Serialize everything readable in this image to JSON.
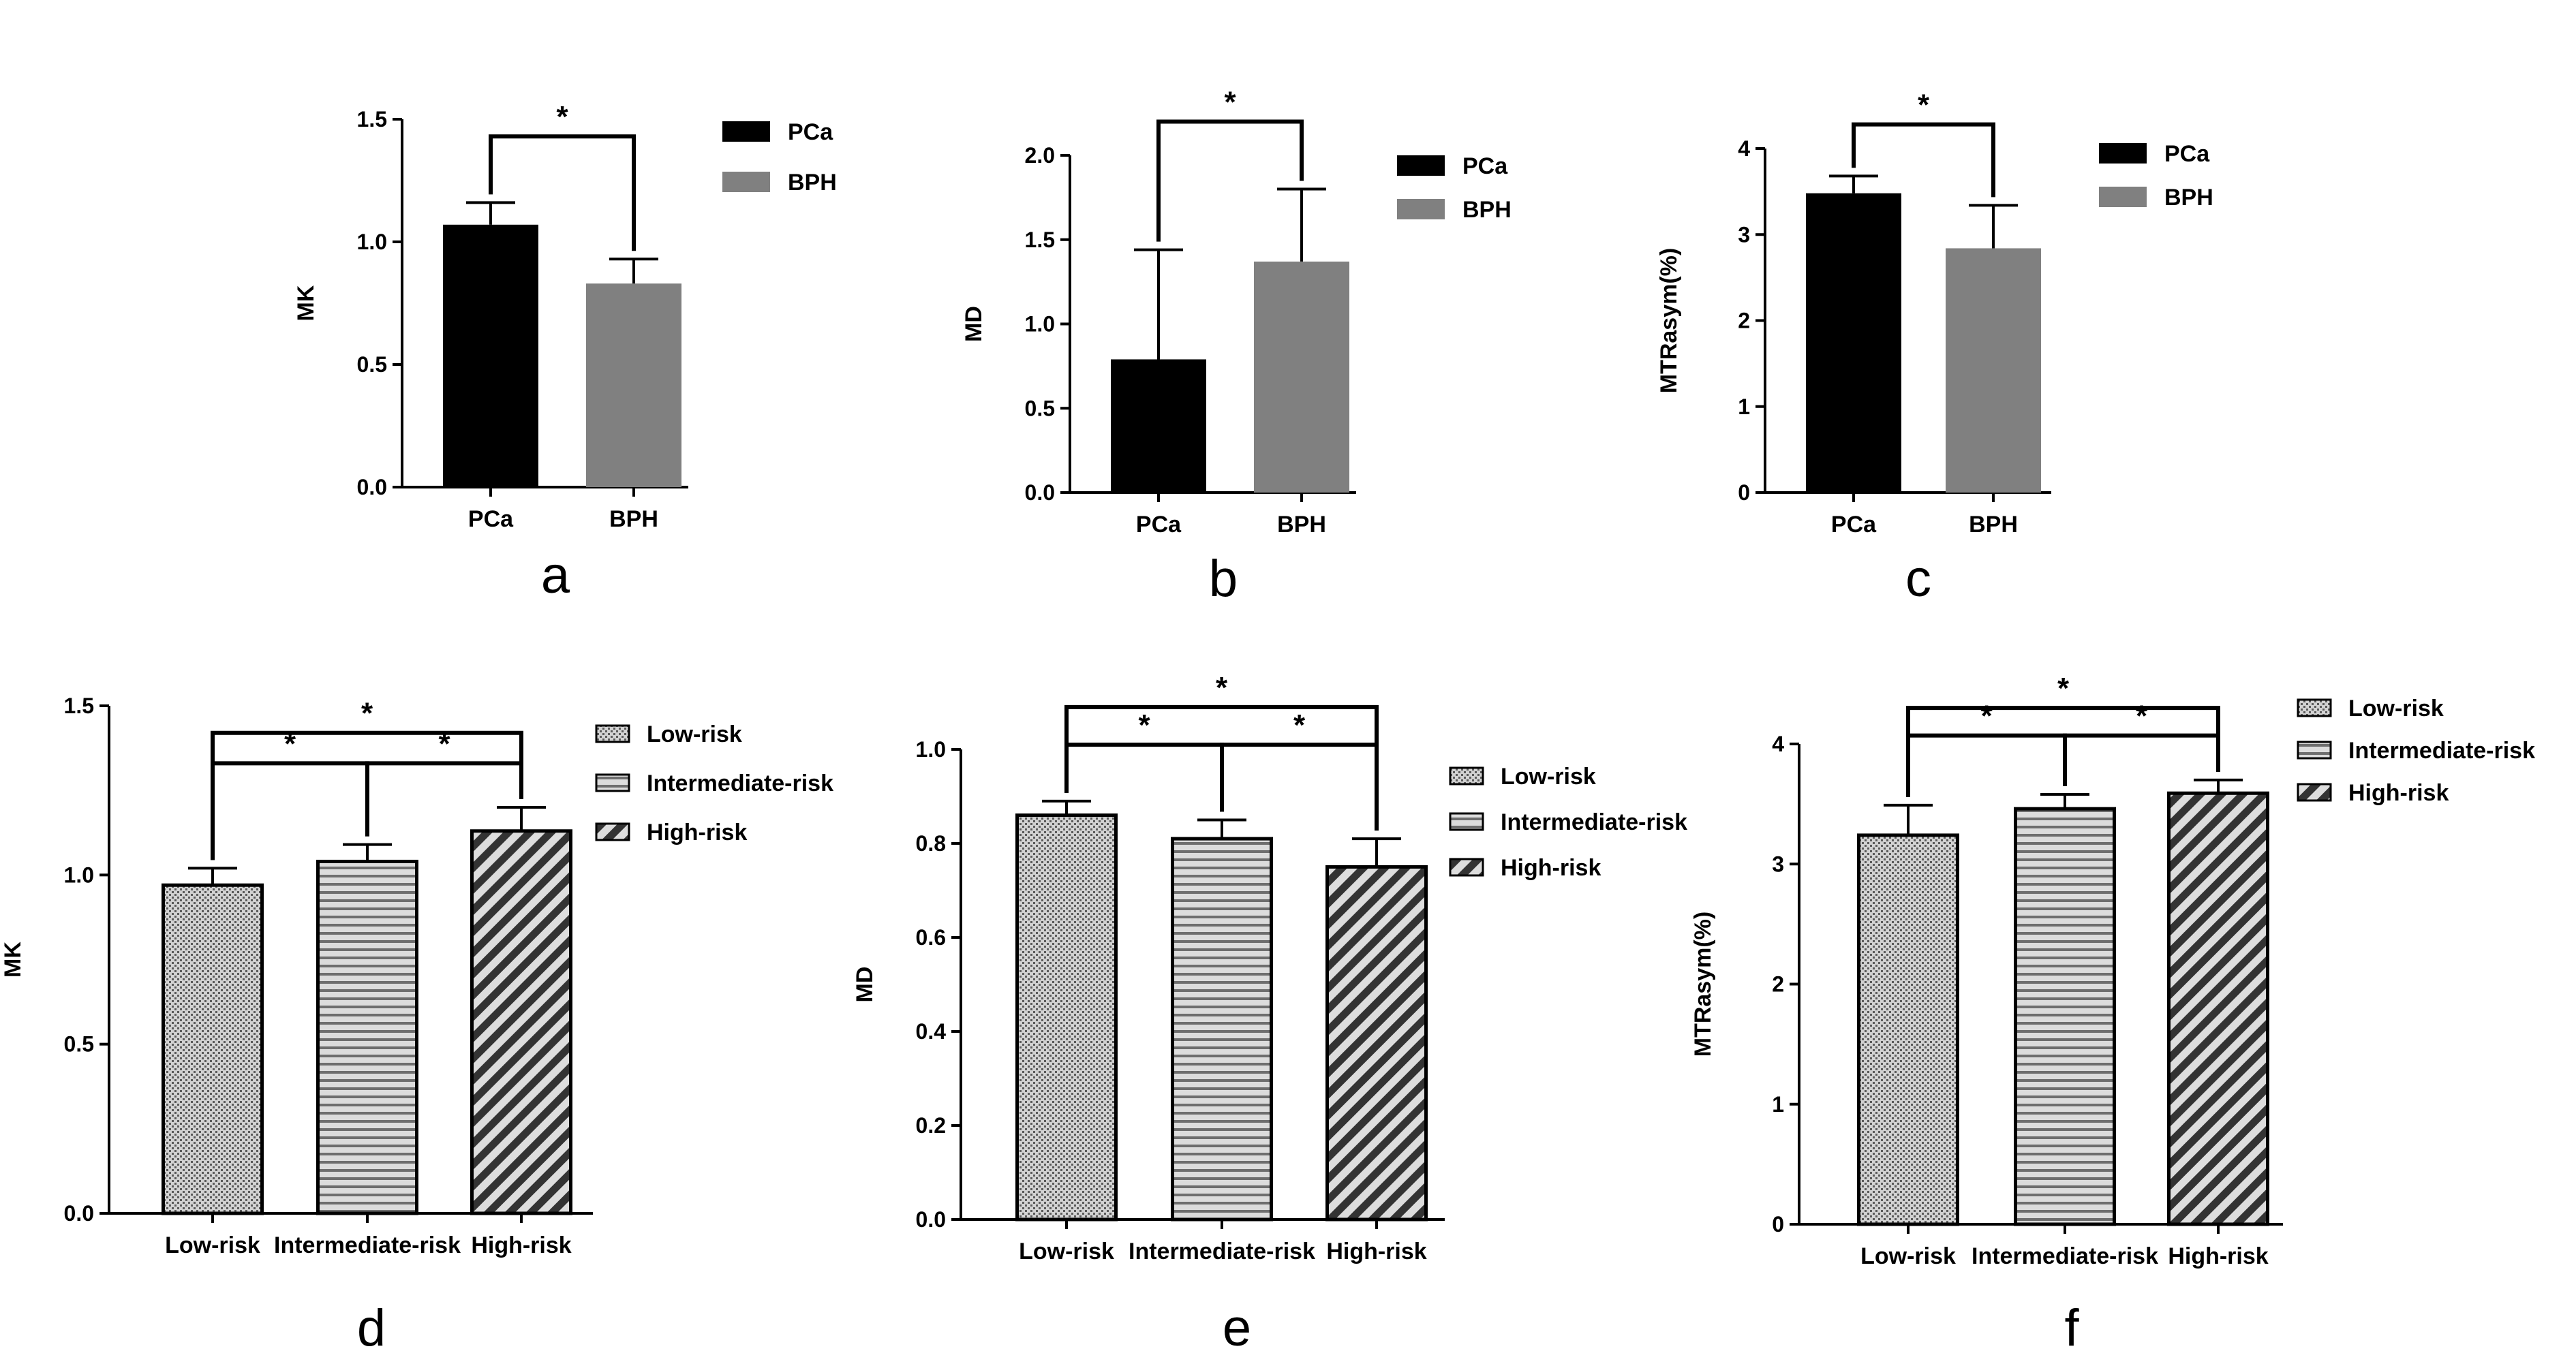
{
  "colors": {
    "pca": "#000000",
    "bph": "#808080",
    "risk_fill": "#c8c8c8",
    "ink": "#000000"
  },
  "chart_data": [
    {
      "type": "bar",
      "panel": "a",
      "ylabel": "MK",
      "ylim": [
        0,
        1.5
      ],
      "yticks": [
        "0.0",
        "0.5",
        "1.0",
        "1.5"
      ],
      "categories": [
        "PCa",
        "BPH"
      ],
      "values": [
        1.07,
        0.83
      ],
      "errors": [
        0.09,
        0.1
      ],
      "fills": [
        "pca",
        "bph"
      ],
      "legend": [
        {
          "label": "PCa",
          "fill": "pca"
        },
        {
          "label": "BPH",
          "fill": "bph"
        }
      ],
      "significance": [
        {
          "from": 0,
          "to": 1,
          "y": 1.43,
          "label": "*"
        }
      ]
    },
    {
      "type": "bar",
      "panel": "b",
      "ylabel": "MD",
      "ylim": [
        0,
        2.0
      ],
      "yticks": [
        "0.0",
        "0.5",
        "1.0",
        "1.5",
        "2.0"
      ],
      "categories": [
        "PCa",
        "BPH"
      ],
      "values": [
        0.79,
        1.37
      ],
      "errors": [
        0.65,
        0.43
      ],
      "fills": [
        "pca",
        "bph"
      ],
      "legend": [
        {
          "label": "PCa",
          "fill": "pca"
        },
        {
          "label": "BPH",
          "fill": "bph"
        }
      ],
      "significance": [
        {
          "from": 0,
          "to": 1,
          "y": 2.2,
          "label": "*"
        }
      ]
    },
    {
      "type": "bar",
      "panel": "c",
      "ylabel": "MTRasym(%)",
      "ylim": [
        0,
        4
      ],
      "yticks": [
        "0",
        "1",
        "2",
        "3",
        "4"
      ],
      "categories": [
        "PCa",
        "BPH"
      ],
      "values": [
        3.48,
        2.84
      ],
      "errors": [
        0.2,
        0.5
      ],
      "fills": [
        "pca",
        "bph"
      ],
      "legend": [
        {
          "label": "PCa",
          "fill": "pca"
        },
        {
          "label": "BPH",
          "fill": "bph"
        }
      ],
      "significance": [
        {
          "from": 0,
          "to": 1,
          "y": 4.28,
          "label": "*"
        }
      ]
    },
    {
      "type": "bar",
      "panel": "d",
      "ylabel": "MK",
      "ylim": [
        0,
        1.5
      ],
      "yticks": [
        "0.0",
        "0.5",
        "1.0",
        "1.5"
      ],
      "categories": [
        "Low-risk",
        "Intermediate-risk",
        "High-risk"
      ],
      "values": [
        0.97,
        1.04,
        1.13
      ],
      "errors": [
        0.05,
        0.05,
        0.07
      ],
      "fills": [
        "dots",
        "hlines",
        "diag"
      ],
      "legend": [
        {
          "label": "Low-risk",
          "fill": "dots"
        },
        {
          "label": "Intermediate-risk",
          "fill": "hlines"
        },
        {
          "label": "High-risk",
          "fill": "diag"
        }
      ],
      "significance": [
        {
          "from": 0,
          "to": 1,
          "y": 1.33,
          "label": "*"
        },
        {
          "from": 1,
          "to": 2,
          "y": 1.33,
          "label": "*"
        },
        {
          "from": 0,
          "to": 2,
          "y": 1.42,
          "label": "*"
        }
      ]
    },
    {
      "type": "bar",
      "panel": "e",
      "ylabel": "MD",
      "ylim": [
        0,
        1.0
      ],
      "yticks": [
        "0.0",
        "0.2",
        "0.4",
        "0.6",
        "0.8",
        "1.0"
      ],
      "categories": [
        "Low-risk",
        "Intermediate-risk",
        "High-risk"
      ],
      "values": [
        0.86,
        0.81,
        0.75
      ],
      "errors": [
        0.03,
        0.04,
        0.06
      ],
      "fills": [
        "dots",
        "hlines",
        "diag"
      ],
      "legend": [
        {
          "label": "Low-risk",
          "fill": "dots"
        },
        {
          "label": "Intermediate-risk",
          "fill": "hlines"
        },
        {
          "label": "High-risk",
          "fill": "diag"
        }
      ],
      "significance": [
        {
          "from": 0,
          "to": 1,
          "y": 1.01,
          "label": "*"
        },
        {
          "from": 1,
          "to": 2,
          "y": 1.01,
          "label": "*"
        },
        {
          "from": 0,
          "to": 2,
          "y": 1.09,
          "label": "*"
        }
      ]
    },
    {
      "type": "bar",
      "panel": "f",
      "ylabel": "MTRasym(%)",
      "ylim": [
        0,
        4
      ],
      "yticks": [
        "0",
        "1",
        "2",
        "3",
        "4"
      ],
      "categories": [
        "Low-risk",
        "Intermediate-risk",
        "High-risk"
      ],
      "values": [
        3.24,
        3.46,
        3.59
      ],
      "errors": [
        0.25,
        0.12,
        0.11
      ],
      "fills": [
        "dots",
        "hlines",
        "diag"
      ],
      "legend": [
        {
          "label": "Low-risk",
          "fill": "dots"
        },
        {
          "label": "Intermediate-risk",
          "fill": "hlines"
        },
        {
          "label": "High-risk",
          "fill": "diag"
        }
      ],
      "significance": [
        {
          "from": 0,
          "to": 1,
          "y": 4.07,
          "label": "*"
        },
        {
          "from": 1,
          "to": 2,
          "y": 4.07,
          "label": "*"
        },
        {
          "from": 0,
          "to": 2,
          "y": 4.3,
          "label": "*"
        }
      ]
    }
  ]
}
